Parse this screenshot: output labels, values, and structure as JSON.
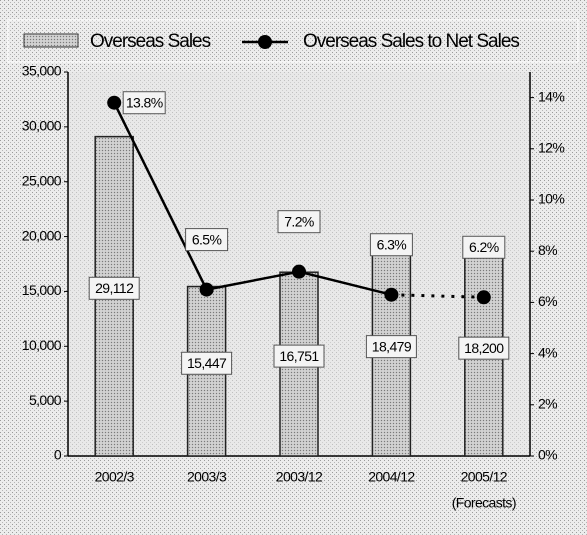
{
  "chart_data": {
    "type": "bar",
    "categories": [
      "2002/3",
      "2003/3",
      "2003/12",
      "2004/12",
      "2005/12"
    ],
    "annotation": "(Forecasts)",
    "series": [
      {
        "name": "Overseas Sales",
        "type": "bar",
        "color": "#bdbdbd",
        "values": [
          29112,
          15447,
          16751,
          18479,
          18200
        ],
        "value_labels": [
          "29,112",
          "15,447",
          "16,751",
          "18,479",
          "18,200"
        ]
      },
      {
        "name": "Overseas Sales to Net Sales",
        "type": "line",
        "axis": "y2",
        "color": "#000000",
        "values": [
          13.8,
          6.5,
          7.2,
          6.3,
          6.2
        ],
        "value_labels": [
          "13.8%",
          "6.5%",
          "7.2%",
          "6.3%",
          "6.2%"
        ]
      }
    ],
    "ylim": [
      0,
      35000
    ],
    "yticks": [
      0,
      {
        "value": 5000,
        "label": "5,000"
      },
      {
        "value": 10000,
        "label": "10,000"
      },
      {
        "value": 15000,
        "label": "15,000"
      },
      {
        "value": 20000,
        "label": "20,000"
      },
      {
        "value": 25000,
        "label": "25,000"
      },
      {
        "value": 30000,
        "label": "30,000"
      },
      {
        "value": 35000,
        "label": "35,000"
      }
    ],
    "y2lim": [
      0,
      15
    ],
    "y2ticks": [
      {
        "value": 0,
        "label": "0%"
      },
      {
        "value": 2,
        "label": "2%"
      },
      {
        "value": 4,
        "label": "4%"
      },
      {
        "value": 6,
        "label": "6%"
      },
      {
        "value": 8,
        "label": "8%"
      },
      {
        "value": 10,
        "label": "10%"
      },
      {
        "value": 12,
        "label": "12%"
      },
      {
        "value": 14,
        "label": "14%"
      }
    ],
    "legend": "top"
  }
}
